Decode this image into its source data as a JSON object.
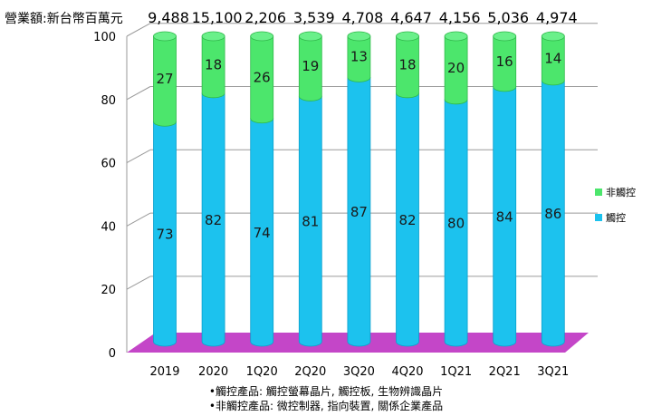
{
  "revenue_label": "營業額:新台幣百萬元",
  "notes": [
    "•觸控產品: 觸控螢幕晶片, 觸控板, 生物辨識晶片",
    "•非觸控產品: 微控制器, 指向裝置, 關係企業產品"
  ],
  "colors": {
    "touch": "#1cc2ee",
    "non_touch": "#4ce66c",
    "floor": "#c446c8",
    "grid": "#9a9a9a"
  },
  "chart_data": {
    "type": "bar",
    "stacked": true,
    "categories": [
      "2019",
      "2020",
      "1Q20",
      "2Q20",
      "3Q20",
      "4Q20",
      "1Q21",
      "2Q21",
      "3Q21"
    ],
    "revenue": [
      "9,488",
      "15,100",
      "2,206",
      "3,539",
      "4,708",
      "4,647",
      "4,156",
      "5,036",
      "4,974"
    ],
    "series": [
      {
        "name": "觸控",
        "values": [
          73,
          82,
          74,
          81,
          87,
          82,
          80,
          84,
          86
        ]
      },
      {
        "name": "非觸控",
        "values": [
          27,
          18,
          26,
          19,
          13,
          18,
          20,
          16,
          14
        ]
      }
    ],
    "y_ticks": [
      0,
      20,
      40,
      60,
      80,
      100
    ],
    "ylim": [
      0,
      100
    ],
    "grid": true,
    "legend_position": "right"
  }
}
